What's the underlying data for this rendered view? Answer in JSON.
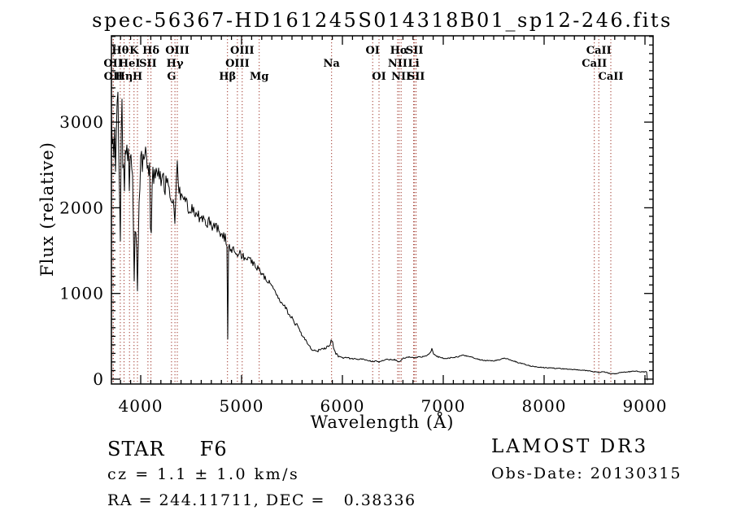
{
  "title": "spec-56367-HD161245S014318B01_sp12-246.fits",
  "axes": {
    "xlabel": "Wavelength (Å)",
    "ylabel": "Flux (relative)",
    "x_ticks": [
      4000,
      5000,
      6000,
      7000,
      8000,
      9000
    ],
    "y_ticks": [
      0,
      1000,
      2000,
      3000
    ]
  },
  "annotations": {
    "object_class": "STAR     F6",
    "cz": "cz = 1.1 ± 1.0 km/s",
    "ra_dec": "RA = 244.11711, DEC =   0.38336",
    "survey": "LAMOST DR3",
    "obs_date": "Obs-Date: 20130315"
  },
  "colors": {
    "background": "#ffffff",
    "spectrum": "#000000",
    "frame": "#000000",
    "line_marker": "#9e3428"
  },
  "chart_data": {
    "type": "line",
    "title": "spec-56367-HD161245S014318B01_sp12-246.fits",
    "xlabel": "Wavelength (Å)",
    "ylabel": "Flux (relative)",
    "x_range": [
      3710,
      9081
    ],
    "y_range": [
      -60,
      4010
    ],
    "grid": false,
    "legend": false,
    "x_ticks": [
      4000,
      5000,
      6000,
      7000,
      8000,
      9000
    ],
    "y_ticks": [
      0,
      1000,
      2000,
      3000
    ],
    "x_minor_step": 100,
    "y_minor_step": 100,
    "spectral_lines": [
      {
        "label": "OII",
        "wavelength": 3727,
        "row": 2
      },
      {
        "label": "OII",
        "wavelength": 3729,
        "row": 3
      },
      {
        "label": "Hθ",
        "wavelength": 3798,
        "row": 1
      },
      {
        "label": "Hη",
        "wavelength": 3835,
        "row": 3
      },
      {
        "label": "HeI",
        "wavelength": 3889,
        "row": 2
      },
      {
        "label": "K",
        "wavelength": 3934,
        "row": 1
      },
      {
        "label": "H",
        "wavelength": 3968,
        "row": 3
      },
      {
        "label": "SII",
        "wavelength": 4072,
        "row": 2
      },
      {
        "label": "Hδ",
        "wavelength": 4102,
        "row": 1
      },
      {
        "label": "G",
        "wavelength": 4306,
        "row": 3
      },
      {
        "label": "Hγ",
        "wavelength": 4340,
        "row": 2
      },
      {
        "label": "OIII",
        "wavelength": 4363,
        "row": 1
      },
      {
        "label": "Hβ",
        "wavelength": 4861,
        "row": 3
      },
      {
        "label": "OIII",
        "wavelength": 4959,
        "row": 2
      },
      {
        "label": "OIII",
        "wavelength": 5007,
        "row": 1
      },
      {
        "label": "Mg",
        "wavelength": 5175,
        "row": 3
      },
      {
        "label": "Na",
        "wavelength": 5893,
        "row": 2
      },
      {
        "label": "OI",
        "wavelength": 6300,
        "row": 1
      },
      {
        "label": "OI",
        "wavelength": 6363,
        "row": 3
      },
      {
        "label": "NII",
        "wavelength": 6548,
        "row": 2
      },
      {
        "label": "Hα",
        "wavelength": 6563,
        "row": 1
      },
      {
        "label": "NII",
        "wavelength": 6583,
        "row": 3
      },
      {
        "label": "Li",
        "wavelength": 6707,
        "row": 2
      },
      {
        "label": "SII",
        "wavelength": 6716,
        "row": 1
      },
      {
        "label": "SII",
        "wavelength": 6731,
        "row": 3
      },
      {
        "label": "CaII",
        "wavelength": 8498,
        "row": 2
      },
      {
        "label": "CaII",
        "wavelength": 8542,
        "row": 1
      },
      {
        "label": "CaII",
        "wavelength": 8662,
        "row": 3
      }
    ],
    "spectrum_anchors": [
      [
        3710,
        2900
      ],
      [
        3714,
        3350
      ],
      [
        3718,
        2600
      ],
      [
        3722,
        3480
      ],
      [
        3726,
        2950
      ],
      [
        3730,
        3420
      ],
      [
        3734,
        2500
      ],
      [
        3738,
        3300
      ],
      [
        3742,
        2800
      ],
      [
        3746,
        3450
      ],
      [
        3750,
        2600
      ],
      [
        3755,
        3350
      ],
      [
        3760,
        2450
      ],
      [
        3765,
        3200
      ],
      [
        3770,
        2850
      ],
      [
        3775,
        3400
      ],
      [
        3780,
        2550
      ],
      [
        3785,
        3150
      ],
      [
        3790,
        2300
      ],
      [
        3795,
        1900
      ],
      [
        3799,
        1620
      ],
      [
        3804,
        2500
      ],
      [
        3810,
        3000
      ],
      [
        3816,
        3150
      ],
      [
        3822,
        2500
      ],
      [
        3828,
        2850
      ],
      [
        3835,
        1950
      ],
      [
        3842,
        2600
      ],
      [
        3850,
        2900
      ],
      [
        3858,
        2450
      ],
      [
        3866,
        2750
      ],
      [
        3874,
        2400
      ],
      [
        3882,
        2650
      ],
      [
        3889,
        1850
      ],
      [
        3896,
        2400
      ],
      [
        3904,
        2600
      ],
      [
        3912,
        2350
      ],
      [
        3920,
        2500
      ],
      [
        3927,
        2100
      ],
      [
        3934,
        1020
      ],
      [
        3942,
        1700
      ],
      [
        3950,
        1850
      ],
      [
        3958,
        1550
      ],
      [
        3968,
        1060
      ],
      [
        3976,
        1700
      ],
      [
        3984,
        2100
      ],
      [
        3992,
        2350
      ],
      [
        4000,
        2500
      ],
      [
        4010,
        2560
      ],
      [
        4020,
        2450
      ],
      [
        4030,
        2600
      ],
      [
        4040,
        2500
      ],
      [
        4050,
        2620
      ],
      [
        4060,
        2480
      ],
      [
        4072,
        2550
      ],
      [
        4082,
        2460
      ],
      [
        4092,
        2400
      ],
      [
        4102,
        1280
      ],
      [
        4112,
        2250
      ],
      [
        4125,
        2400
      ],
      [
        4140,
        2320
      ],
      [
        4155,
        2430
      ],
      [
        4170,
        2350
      ],
      [
        4185,
        2420
      ],
      [
        4200,
        2300
      ],
      [
        4220,
        2380
      ],
      [
        4240,
        2260
      ],
      [
        4260,
        2300
      ],
      [
        4280,
        2220
      ],
      [
        4306,
        2050
      ],
      [
        4320,
        2180
      ],
      [
        4340,
        1720
      ],
      [
        4352,
        2300
      ],
      [
        4363,
        2500
      ],
      [
        4375,
        2200
      ],
      [
        4390,
        2150
      ],
      [
        4410,
        2100
      ],
      [
        4436,
        2050
      ],
      [
        4460,
        2030
      ],
      [
        4490,
        1990
      ],
      [
        4520,
        1960
      ],
      [
        4550,
        1930
      ],
      [
        4580,
        1900
      ],
      [
        4610,
        1870
      ],
      [
        4640,
        1850
      ],
      [
        4670,
        1830
      ],
      [
        4700,
        1800
      ],
      [
        4726,
        1790
      ],
      [
        4750,
        1760
      ],
      [
        4780,
        1720
      ],
      [
        4810,
        1680
      ],
      [
        4840,
        1640
      ],
      [
        4856,
        1580
      ],
      [
        4862,
        270
      ],
      [
        4870,
        1520
      ],
      [
        4900,
        1520
      ],
      [
        4930,
        1500
      ],
      [
        4960,
        1470
      ],
      [
        4990,
        1450
      ],
      [
        5020,
        1420
      ],
      [
        5050,
        1400
      ],
      [
        5080,
        1380
      ],
      [
        5110,
        1360
      ],
      [
        5140,
        1340
      ],
      [
        5175,
        1260
      ],
      [
        5210,
        1230
      ],
      [
        5240,
        1180
      ],
      [
        5270,
        1140
      ],
      [
        5300,
        1080
      ],
      [
        5330,
        1030
      ],
      [
        5360,
        970
      ],
      [
        5390,
        920
      ],
      [
        5420,
        860
      ],
      [
        5450,
        800
      ],
      [
        5480,
        740
      ],
      [
        5510,
        690
      ],
      [
        5540,
        640
      ],
      [
        5570,
        580
      ],
      [
        5600,
        520
      ],
      [
        5630,
        460
      ],
      [
        5660,
        400
      ],
      [
        5690,
        360
      ],
      [
        5720,
        335
      ],
      [
        5750,
        330
      ],
      [
        5780,
        345
      ],
      [
        5810,
        355
      ],
      [
        5840,
        370
      ],
      [
        5865,
        395
      ],
      [
        5880,
        415
      ],
      [
        5893,
        465
      ],
      [
        5903,
        430
      ],
      [
        5915,
        340
      ],
      [
        5935,
        300
      ],
      [
        5960,
        270
      ],
      [
        5990,
        255
      ],
      [
        6020,
        248
      ],
      [
        6060,
        245
      ],
      [
        6100,
        240
      ],
      [
        6150,
        235
      ],
      [
        6200,
        230
      ],
      [
        6250,
        220
      ],
      [
        6300,
        205
      ],
      [
        6330,
        212
      ],
      [
        6363,
        200
      ],
      [
        6400,
        215
      ],
      [
        6450,
        228
      ],
      [
        6500,
        230
      ],
      [
        6530,
        224
      ],
      [
        6563,
        195
      ],
      [
        6600,
        240
      ],
      [
        6640,
        255
      ],
      [
        6680,
        255
      ],
      [
        6716,
        248
      ],
      [
        6740,
        255
      ],
      [
        6780,
        260
      ],
      [
        6820,
        265
      ],
      [
        6850,
        285
      ],
      [
        6875,
        312
      ],
      [
        6887,
        360
      ],
      [
        6900,
        300
      ],
      [
        6930,
        270
      ],
      [
        6960,
        255
      ],
      [
        7000,
        246
      ],
      [
        7050,
        244
      ],
      [
        7100,
        250
      ],
      [
        7150,
        264
      ],
      [
        7200,
        278
      ],
      [
        7250,
        264
      ],
      [
        7300,
        250
      ],
      [
        7350,
        232
      ],
      [
        7400,
        220
      ],
      [
        7450,
        214
      ],
      [
        7500,
        214
      ],
      [
        7550,
        224
      ],
      [
        7605,
        246
      ],
      [
        7650,
        232
      ],
      [
        7700,
        210
      ],
      [
        7750,
        190
      ],
      [
        7800,
        176
      ],
      [
        7870,
        152
      ],
      [
        7950,
        140
      ],
      [
        8010,
        133
      ],
      [
        8100,
        127
      ],
      [
        8160,
        123
      ],
      [
        8220,
        118
      ],
      [
        8280,
        114
      ],
      [
        8350,
        107
      ],
      [
        8410,
        100
      ],
      [
        8470,
        92
      ],
      [
        8498,
        84
      ],
      [
        8520,
        88
      ],
      [
        8542,
        78
      ],
      [
        8570,
        85
      ],
      [
        8610,
        80
      ],
      [
        8650,
        66
      ],
      [
        8662,
        60
      ],
      [
        8700,
        62
      ],
      [
        8740,
        72
      ],
      [
        8780,
        78
      ],
      [
        8830,
        85
      ],
      [
        8870,
        92
      ],
      [
        8900,
        96
      ],
      [
        8930,
        90
      ],
      [
        8960,
        86
      ],
      [
        8990,
        85
      ],
      [
        9008,
        92
      ],
      [
        9018,
        85
      ],
      [
        9022,
        40
      ],
      [
        9025,
        -20
      ]
    ],
    "noise_profile": [
      [
        3710,
        260
      ],
      [
        3940,
        230
      ],
      [
        4000,
        130
      ],
      [
        4200,
        120
      ],
      [
        4400,
        90
      ],
      [
        4700,
        70
      ],
      [
        4900,
        55
      ],
      [
        5100,
        45
      ],
      [
        5300,
        38
      ],
      [
        5500,
        30
      ],
      [
        5700,
        18
      ],
      [
        5900,
        14
      ],
      [
        6050,
        10
      ],
      [
        6300,
        8
      ],
      [
        6600,
        8
      ],
      [
        7000,
        7
      ],
      [
        7600,
        6
      ],
      [
        8200,
        5
      ],
      [
        9025,
        5
      ]
    ],
    "noise_seed": 20130315
  }
}
